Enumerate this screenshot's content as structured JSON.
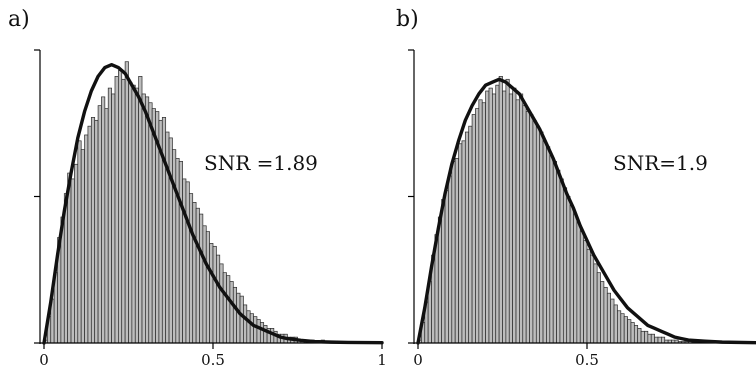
{
  "chart_data": [
    {
      "type": "bar",
      "panel_label": "a)",
      "annotation": "SNR =1.89",
      "xlim": [
        0,
        1
      ],
      "ylim": [
        0,
        1
      ],
      "x_ticks": [
        {
          "value": 0,
          "label": "0"
        },
        {
          "value": 0.5,
          "label": "0.5"
        },
        {
          "value": 1,
          "label": "1"
        }
      ],
      "y_ticks": [
        0,
        0.5,
        1
      ],
      "grid": false,
      "histogram": {
        "bin_start": 0,
        "bin_width": 0.01,
        "values": [
          0.01,
          0.09,
          0.15,
          0.24,
          0.36,
          0.43,
          0.51,
          0.58,
          0.56,
          0.61,
          0.69,
          0.66,
          0.71,
          0.74,
          0.77,
          0.76,
          0.81,
          0.84,
          0.8,
          0.87,
          0.85,
          0.91,
          0.93,
          0.9,
          0.96,
          0.89,
          0.88,
          0.87,
          0.91,
          0.85,
          0.84,
          0.82,
          0.8,
          0.79,
          0.76,
          0.77,
          0.72,
          0.7,
          0.66,
          0.63,
          0.62,
          0.56,
          0.55,
          0.51,
          0.48,
          0.46,
          0.44,
          0.4,
          0.38,
          0.34,
          0.33,
          0.3,
          0.27,
          0.24,
          0.23,
          0.21,
          0.19,
          0.17,
          0.16,
          0.13,
          0.11,
          0.1,
          0.09,
          0.08,
          0.07,
          0.06,
          0.05,
          0.05,
          0.04,
          0.03,
          0.03,
          0.03,
          0.02,
          0.02,
          0.02,
          0.01,
          0.01,
          0.01,
          0.01,
          0.01,
          0.005,
          0.005,
          0.01,
          0.005,
          0.005,
          0.005,
          0.003,
          0.003,
          0.003,
          0.002,
          0.002,
          0.002,
          0.001,
          0.001,
          0.001,
          0.001,
          0.001,
          0.001,
          0.001,
          0.001
        ]
      },
      "fit_curve": {
        "x": [
          0,
          0.02,
          0.04,
          0.06,
          0.08,
          0.1,
          0.12,
          0.14,
          0.16,
          0.18,
          0.2,
          0.22,
          0.24,
          0.26,
          0.28,
          0.3,
          0.32,
          0.34,
          0.36,
          0.38,
          0.4,
          0.42,
          0.44,
          0.46,
          0.48,
          0.5,
          0.52,
          0.54,
          0.56,
          0.58,
          0.6,
          0.62,
          0.64,
          0.66,
          0.68,
          0.7,
          0.72,
          0.74,
          0.76,
          0.78,
          0.8,
          0.85,
          0.9,
          1.0
        ],
        "y": [
          0,
          0.14,
          0.3,
          0.45,
          0.58,
          0.7,
          0.79,
          0.86,
          0.91,
          0.94,
          0.95,
          0.94,
          0.92,
          0.88,
          0.84,
          0.79,
          0.73,
          0.67,
          0.61,
          0.55,
          0.49,
          0.43,
          0.37,
          0.32,
          0.27,
          0.23,
          0.19,
          0.16,
          0.13,
          0.1,
          0.08,
          0.06,
          0.05,
          0.04,
          0.03,
          0.02,
          0.015,
          0.012,
          0.009,
          0.007,
          0.005,
          0.003,
          0.002,
          0.001
        ]
      }
    },
    {
      "type": "bar",
      "panel_label": "b)",
      "annotation": "SNR=1.9",
      "xlim": [
        0,
        1
      ],
      "ylim": [
        0,
        1
      ],
      "x_ticks": [
        {
          "value": 0,
          "label": "0"
        },
        {
          "value": 0.5,
          "label": "0.5"
        }
      ],
      "y_ticks": [
        0,
        0.5,
        1
      ],
      "grid": false,
      "histogram": {
        "bin_start": 0,
        "bin_width": 0.01,
        "values": [
          0.01,
          0.07,
          0.14,
          0.21,
          0.3,
          0.37,
          0.43,
          0.49,
          0.52,
          0.57,
          0.62,
          0.63,
          0.68,
          0.69,
          0.72,
          0.74,
          0.78,
          0.8,
          0.83,
          0.82,
          0.86,
          0.87,
          0.85,
          0.88,
          0.91,
          0.86,
          0.9,
          0.85,
          0.87,
          0.83,
          0.85,
          0.81,
          0.79,
          0.78,
          0.76,
          0.74,
          0.72,
          0.69,
          0.67,
          0.64,
          0.62,
          0.59,
          0.56,
          0.53,
          0.5,
          0.47,
          0.44,
          0.41,
          0.38,
          0.35,
          0.32,
          0.3,
          0.27,
          0.24,
          0.21,
          0.19,
          0.17,
          0.15,
          0.13,
          0.11,
          0.1,
          0.09,
          0.08,
          0.07,
          0.06,
          0.05,
          0.04,
          0.04,
          0.03,
          0.03,
          0.02,
          0.02,
          0.02,
          0.01,
          0.01,
          0.01,
          0.01,
          0.005,
          0.005,
          0.005,
          0.005,
          0.003,
          0.003,
          0.002,
          0.002,
          0.002,
          0.001,
          0.001,
          0.001,
          0.001,
          0.001,
          0.001,
          0.001,
          0.001,
          0.001,
          0.001,
          0.001,
          0.001,
          0.001,
          0.001
        ]
      },
      "fit_curve": {
        "x": [
          0,
          0.02,
          0.04,
          0.06,
          0.08,
          0.1,
          0.12,
          0.14,
          0.16,
          0.18,
          0.2,
          0.22,
          0.24,
          0.26,
          0.28,
          0.3,
          0.32,
          0.34,
          0.36,
          0.38,
          0.4,
          0.42,
          0.44,
          0.46,
          0.48,
          0.5,
          0.52,
          0.54,
          0.56,
          0.58,
          0.6,
          0.62,
          0.64,
          0.66,
          0.68,
          0.7,
          0.72,
          0.74,
          0.76,
          0.78,
          0.8,
          0.85,
          0.9,
          1.0
        ],
        "y": [
          0,
          0.12,
          0.26,
          0.39,
          0.51,
          0.61,
          0.69,
          0.76,
          0.81,
          0.85,
          0.88,
          0.89,
          0.9,
          0.89,
          0.87,
          0.85,
          0.81,
          0.77,
          0.73,
          0.68,
          0.63,
          0.57,
          0.51,
          0.46,
          0.4,
          0.35,
          0.3,
          0.26,
          0.22,
          0.18,
          0.15,
          0.12,
          0.1,
          0.08,
          0.06,
          0.05,
          0.04,
          0.03,
          0.02,
          0.015,
          0.01,
          0.006,
          0.003,
          0.001
        ]
      }
    }
  ]
}
